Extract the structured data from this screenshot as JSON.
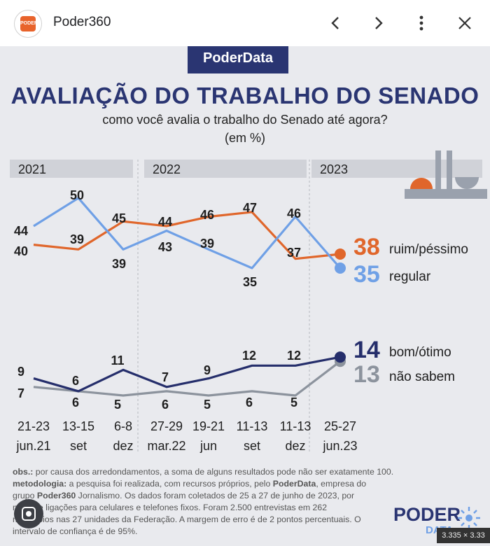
{
  "browser": {
    "app_name": "Poder360",
    "logo_text": "PODER"
  },
  "header": {
    "brand": "PoderData",
    "title": "AVALIAÇÃO DO TRABALHO DO SENADO",
    "subtitle": "como você avalia o trabalho do Senado até agora?",
    "unit": "(em %)"
  },
  "chart_data": {
    "type": "line",
    "years": [
      "2021",
      "2022",
      "2023"
    ],
    "categories": [
      "21-23 jun.21",
      "13-15 set",
      "6-8 dez",
      "27-29 mar.22",
      "19-21 jun",
      "11-13 set",
      "11-13 dez",
      "25-27 jun.23"
    ],
    "tick_labels": [
      {
        "line1": "21-23",
        "line2": "jun.21"
      },
      {
        "line1": "13-15",
        "line2": "set"
      },
      {
        "line1": "6-8",
        "line2": "dez"
      },
      {
        "line1": "27-29",
        "line2": "mar.22"
      },
      {
        "line1": "19-21",
        "line2": "jun"
      },
      {
        "line1": "11-13",
        "line2": "set"
      },
      {
        "line1": "11-13",
        "line2": "dez"
      },
      {
        "line1": "25-27",
        "line2": "jun.23"
      }
    ],
    "series": [
      {
        "name": "ruim/péssimo",
        "color": "#e0662b",
        "values": [
          40,
          39,
          45,
          44,
          46,
          47,
          37,
          38
        ],
        "final_label": "38"
      },
      {
        "name": "regular",
        "color": "#6fa0e6",
        "values": [
          44,
          50,
          39,
          43,
          39,
          35,
          46,
          35
        ],
        "final_label": "35"
      },
      {
        "name": "bom/ótimo",
        "color": "#252e6b",
        "values": [
          9,
          6,
          11,
          7,
          9,
          12,
          12,
          14
        ],
        "final_label": "14"
      },
      {
        "name": "não sabem",
        "color": "#8c939d",
        "values": [
          7,
          6,
          5,
          6,
          5,
          6,
          5,
          13
        ],
        "final_label": "13"
      }
    ]
  },
  "footer": {
    "obs_label": "obs.:",
    "obs_text": " por causa dos arredondamentos, a soma de alguns resultados pode não ser exatamente 100.",
    "method_label": "metodologia:",
    "method_text1": " a pesquisa foi realizada, com recursos próprios, pelo ",
    "method_brand": "PoderData",
    "method_text2": ", empresa do",
    "line3_a": "grupo ",
    "line3_brand": "Poder360",
    "line3_b": " Jornalismo. Os dados foram coletados de 25 a 27 de junho de 2023, por",
    "line4": "meio de ligações para celulares e telefones fixos. Foram 2.500 entrevistas em 262",
    "line5": "municípios nas 27 unidades da Federação. A margem de erro é de 2 pontos percentuais. O",
    "line6": "intervalo de confiança é de 95%."
  },
  "bottom_logo": {
    "word1": "PODER",
    "word2": "DATA"
  },
  "overlay": {
    "size_tag": "3.335 × 3.33"
  }
}
